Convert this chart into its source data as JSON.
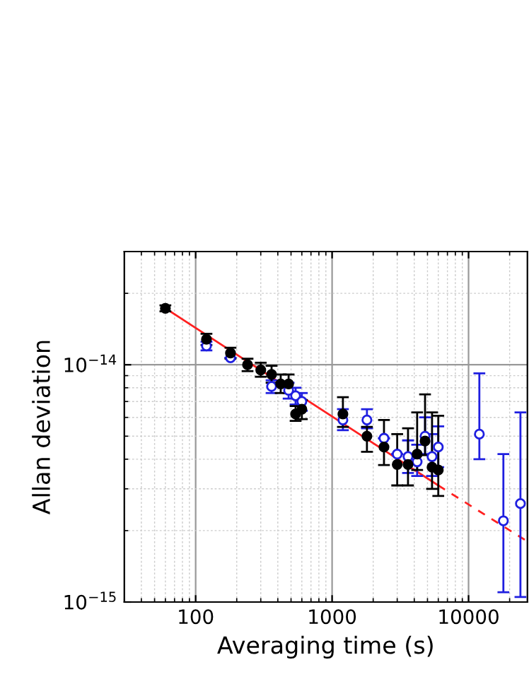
{
  "chart_data": {
    "type": "scatter",
    "xlabel": "Averaging time (s)",
    "ylabel": "Allan deviation",
    "log": "xy",
    "xlim": [
      30,
      27000
    ],
    "ylim": [
      1e-15,
      3e-14
    ],
    "xticks": [
      100,
      1000,
      10000
    ],
    "yticks": [
      {
        "value": 1e-15,
        "label": "10$^{−15}$"
      },
      {
        "value": 1e-14,
        "label": "10$^{−14}$"
      }
    ],
    "grid": true,
    "marker": "circle",
    "legend": false,
    "series": [
      {
        "color": "#1f1fe0",
        "x": [
          120,
          180,
          240,
          300,
          360,
          420,
          480,
          540,
          600,
          1200,
          1800,
          2400,
          3000,
          3600,
          4200,
          4800,
          5400,
          6000,
          12000,
          18000,
          24000
        ],
        "values": [
          1.2e-14,
          1.07e-14,
          null,
          null,
          8.1e-15,
          null,
          7.8e-15,
          7.4e-15,
          7e-15,
          5.85e-15,
          5.85e-15,
          4.9e-15,
          4.2e-15,
          4.1e-15,
          3.9e-15,
          5e-15,
          4.1e-15,
          4.5e-15,
          5.1e-15,
          2.2e-15,
          2.6e-15
        ],
        "errors": [
          [
            1.15e-14,
            1.25e-14
          ],
          null,
          null,
          null,
          [
            7.6e-15,
            8.6e-15
          ],
          null,
          [
            7.2e-15,
            8.4e-15
          ],
          [
            6.8e-15,
            8e-15
          ],
          [
            6.4e-15,
            7.6e-15
          ],
          [
            5.3e-15,
            6.5e-15
          ],
          [
            5.4e-15,
            6.5e-15
          ],
          null,
          null,
          [
            3.5e-15,
            4.8e-15
          ],
          [
            3.4e-15,
            4.6e-15
          ],
          [
            4.2e-15,
            6e-15
          ],
          [
            3.4e-15,
            5.1e-15
          ],
          [
            3.7e-15,
            5.5e-15
          ],
          [
            4e-15,
            9.2e-15
          ],
          [
            1.1e-15,
            4.2e-15
          ],
          [
            1.05e-15,
            6.3e-15
          ]
        ]
      },
      {
        "color": "#000000",
        "x": [
          60,
          120,
          180,
          240,
          300,
          360,
          420,
          480,
          540,
          600,
          1200,
          1800,
          2400,
          3000,
          3600,
          4200,
          4800,
          5400,
          6000
        ],
        "values": [
          1.73e-14,
          1.28e-14,
          1.12e-14,
          1e-14,
          9.5e-15,
          9.1e-15,
          8.3e-15,
          8.3e-15,
          6.2e-15,
          6.5e-15,
          6.2e-15,
          5e-15,
          4.5e-15,
          3.8e-15,
          3.8e-15,
          4.2e-15,
          4.77e-15,
          3.7e-15,
          3.6e-15
        ],
        "errors": [
          [
            1.68e-14,
            1.78e-14
          ],
          [
            1.21e-14,
            1.35e-14
          ],
          [
            1.06e-14,
            1.18e-14
          ],
          [
            9.4e-15,
            1.06e-14
          ],
          [
            8.9e-15,
            1.02e-14
          ],
          [
            8.4e-15,
            9.9e-15
          ],
          [
            7.6e-15,
            9.1e-15
          ],
          [
            7.6e-15,
            9.1e-15
          ],
          [
            5.8e-15,
            6.7e-15
          ],
          [
            5.9e-15,
            7.1e-15
          ],
          [
            5.47e-15,
            7.3e-15
          ],
          [
            4.3e-15,
            5.47e-15
          ],
          [
            3.78e-15,
            5.85e-15
          ],
          [
            3.1e-15,
            5.1e-15
          ],
          [
            3.1e-15,
            5.4e-15
          ],
          [
            3.6e-15,
            6.3e-15
          ],
          [
            4.16e-15,
            7.5e-15
          ],
          [
            3e-15,
            6.3e-15
          ],
          [
            2.8e-15,
            6.1e-15
          ]
        ]
      },
      {
        "type": "line",
        "color": "#ff2020",
        "line_style": "solid",
        "marker": "none",
        "x": [
          60,
          6000
        ],
        "values": [
          1.73e-14,
          3.1e-15
        ]
      },
      {
        "type": "line",
        "color": "#ff2020",
        "line_style": "dashed",
        "marker": "none",
        "x": [
          6000,
          27000
        ],
        "values": [
          3.1e-15,
          1.8e-15
        ]
      }
    ]
  }
}
